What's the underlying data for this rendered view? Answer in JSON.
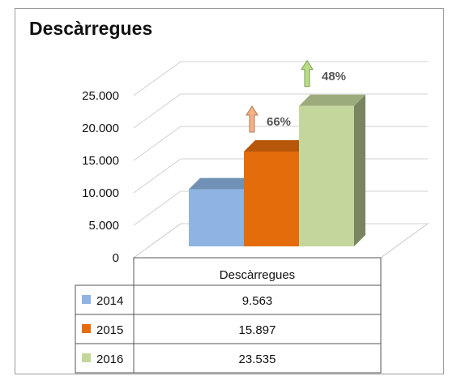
{
  "chart_data": {
    "type": "bar",
    "title": "Descàrregues",
    "categories": [
      "Descàrregues"
    ],
    "series": [
      {
        "name": "2014",
        "values": [
          9563
        ],
        "value_label": "9.563",
        "color": "#8db4e2",
        "change": ""
      },
      {
        "name": "2015",
        "values": [
          15897
        ],
        "value_label": "15.897",
        "color": "#e46c0a",
        "change": "66%"
      },
      {
        "name": "2016",
        "values": [
          23535
        ],
        "value_label": "23.535",
        "color": "#c3d69b",
        "change": "48%"
      }
    ],
    "y_ticks": [
      "0",
      "5.000",
      "10.000",
      "15.000",
      "20.000",
      "25.000"
    ],
    "ylim": [
      0,
      25000
    ],
    "grid": true,
    "legend": "data-table-below",
    "data_table_header": "Descàrregues",
    "arrow_colors": {
      "2015": "#f4b183",
      "2016": "#b7de83"
    }
  }
}
